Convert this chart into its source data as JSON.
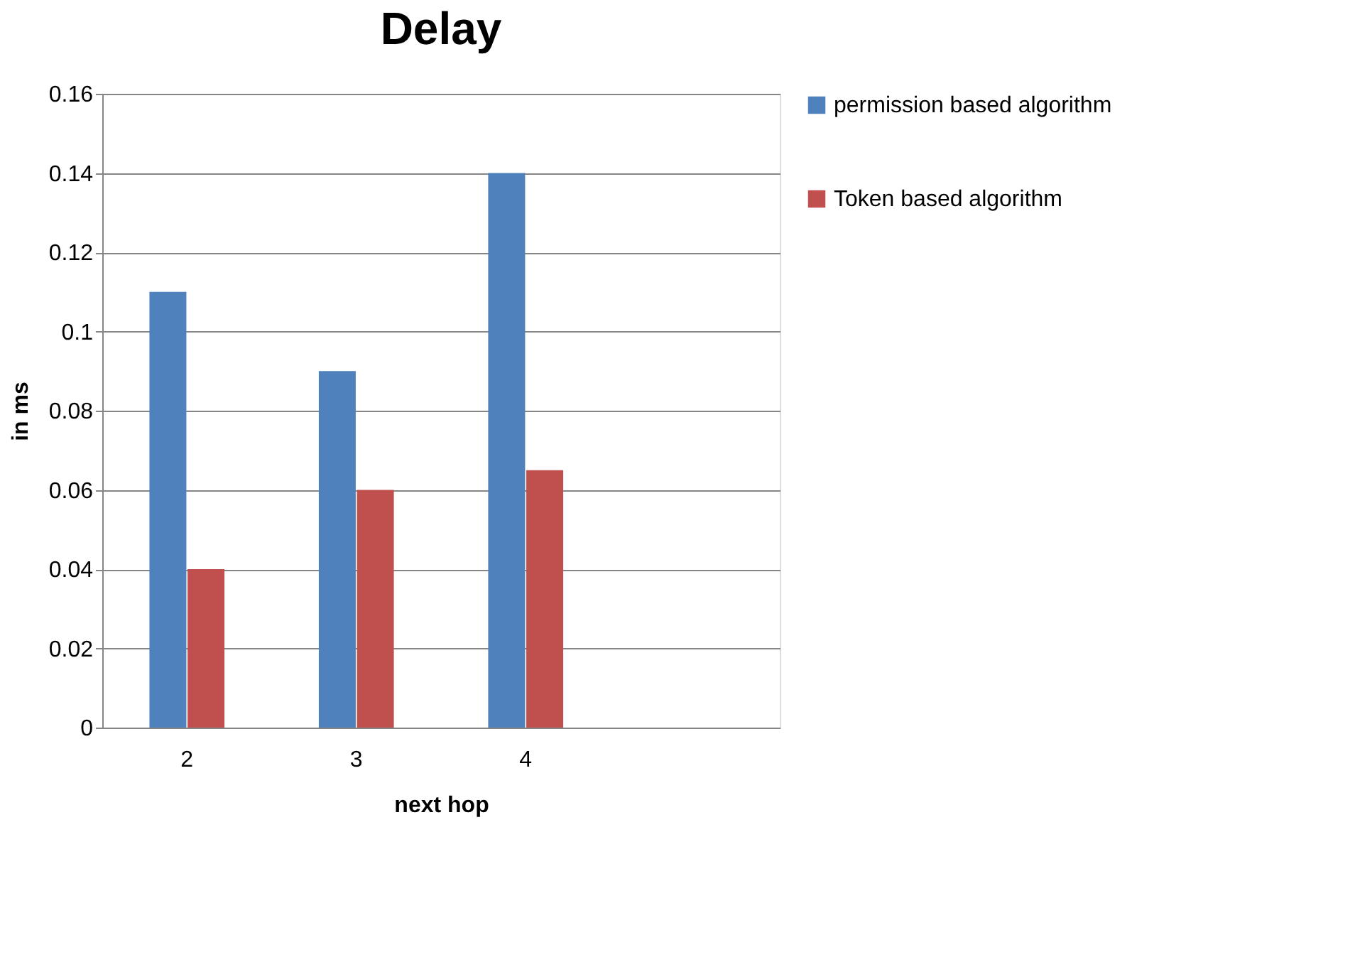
{
  "chart_data": {
    "type": "bar",
    "title": "Delay",
    "xlabel": "next hop",
    "ylabel": "in ms",
    "categories": [
      "2",
      "3",
      "4",
      null
    ],
    "series": [
      {
        "name": "permission based algorithm",
        "color": "#4f81bd",
        "values": [
          0.11,
          0.09,
          0.14,
          null
        ]
      },
      {
        "name": "Token based algorithm",
        "color": "#c0504d",
        "values": [
          0.04,
          0.06,
          0.065,
          null
        ]
      }
    ],
    "ylim": [
      0,
      0.16
    ],
    "yticks": [
      0,
      0.02,
      0.04,
      0.06,
      0.08,
      0.1,
      0.12,
      0.14,
      0.16
    ],
    "grid": "y",
    "legend": "right"
  }
}
